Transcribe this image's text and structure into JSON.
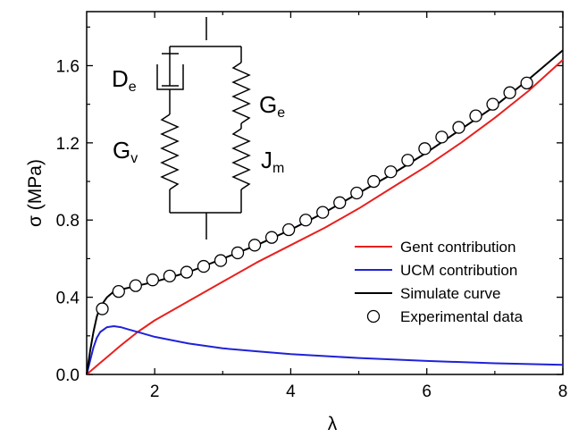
{
  "chart_data": {
    "type": "line",
    "title": "",
    "xlabel": "λ",
    "ylabel": "σ (MPa)",
    "xlim": [
      1,
      8
    ],
    "ylim": [
      0,
      1.88
    ],
    "x_ticks": [
      2,
      4,
      6,
      8
    ],
    "y_ticks": [
      0.0,
      0.4,
      0.8,
      1.2,
      1.6
    ],
    "x_tick_labels": [
      "2",
      "4",
      "6",
      "8"
    ],
    "y_tick_labels": [
      "0.0",
      "0.4",
      "0.8",
      "1.2",
      "1.6"
    ],
    "grid": false,
    "legend_position": "lower-right",
    "series": [
      {
        "name": "Gent contribution",
        "kind": "line",
        "color": "#e8201e",
        "x": [
          1.0,
          1.1,
          1.2,
          1.3,
          1.5,
          1.75,
          2.0,
          2.5,
          3.0,
          3.5,
          4.0,
          4.5,
          5.0,
          5.5,
          6.0,
          6.5,
          7.0,
          7.5,
          8.0
        ],
        "y": [
          0.0,
          0.03,
          0.06,
          0.09,
          0.15,
          0.22,
          0.28,
          0.38,
          0.48,
          0.58,
          0.67,
          0.76,
          0.86,
          0.97,
          1.08,
          1.2,
          1.33,
          1.47,
          1.63
        ]
      },
      {
        "name": "UCM contribution",
        "kind": "line",
        "color": "#1f22d8",
        "x": [
          1.0,
          1.05,
          1.1,
          1.15,
          1.2,
          1.3,
          1.4,
          1.5,
          1.6,
          1.8,
          2.0,
          2.5,
          3.0,
          3.5,
          4.0,
          5.0,
          6.0,
          7.0,
          8.0
        ],
        "y": [
          0.0,
          0.07,
          0.14,
          0.19,
          0.22,
          0.245,
          0.25,
          0.245,
          0.235,
          0.215,
          0.195,
          0.16,
          0.135,
          0.12,
          0.105,
          0.085,
          0.07,
          0.058,
          0.05
        ]
      },
      {
        "name": "Simulate curve",
        "kind": "line",
        "color": "#000000",
        "x": [
          1.0,
          1.05,
          1.1,
          1.15,
          1.2,
          1.3,
          1.4,
          1.5,
          1.75,
          2.0,
          2.5,
          3.0,
          3.5,
          4.0,
          4.5,
          5.0,
          5.5,
          6.0,
          6.5,
          7.0,
          7.5,
          8.0
        ],
        "y": [
          0.0,
          0.12,
          0.22,
          0.3,
          0.35,
          0.4,
          0.43,
          0.44,
          0.46,
          0.48,
          0.53,
          0.6,
          0.67,
          0.75,
          0.84,
          0.94,
          1.04,
          1.15,
          1.27,
          1.39,
          1.53,
          1.68
        ]
      },
      {
        "name": "Experimental data",
        "kind": "scatter",
        "color": "#000000",
        "x": [
          1.23,
          1.47,
          1.72,
          1.97,
          2.22,
          2.47,
          2.72,
          2.97,
          3.22,
          3.47,
          3.72,
          3.97,
          4.22,
          4.47,
          4.72,
          4.97,
          5.22,
          5.47,
          5.72,
          5.97,
          6.22,
          6.47,
          6.72,
          6.97,
          7.22,
          7.47
        ],
        "y": [
          0.34,
          0.43,
          0.46,
          0.49,
          0.51,
          0.53,
          0.56,
          0.59,
          0.63,
          0.67,
          0.71,
          0.75,
          0.8,
          0.84,
          0.89,
          0.94,
          1.0,
          1.05,
          1.11,
          1.17,
          1.23,
          1.28,
          1.34,
          1.4,
          1.46,
          1.51
        ]
      }
    ],
    "schematic_labels": {
      "dashpot": "D",
      "dashpot_sub": "e",
      "left_spring": "G",
      "left_spring_sub": "v",
      "right_spring_top": "G",
      "right_spring_top_sub": "e",
      "right_spring_bottom": "J",
      "right_spring_bottom_sub": "m"
    }
  }
}
